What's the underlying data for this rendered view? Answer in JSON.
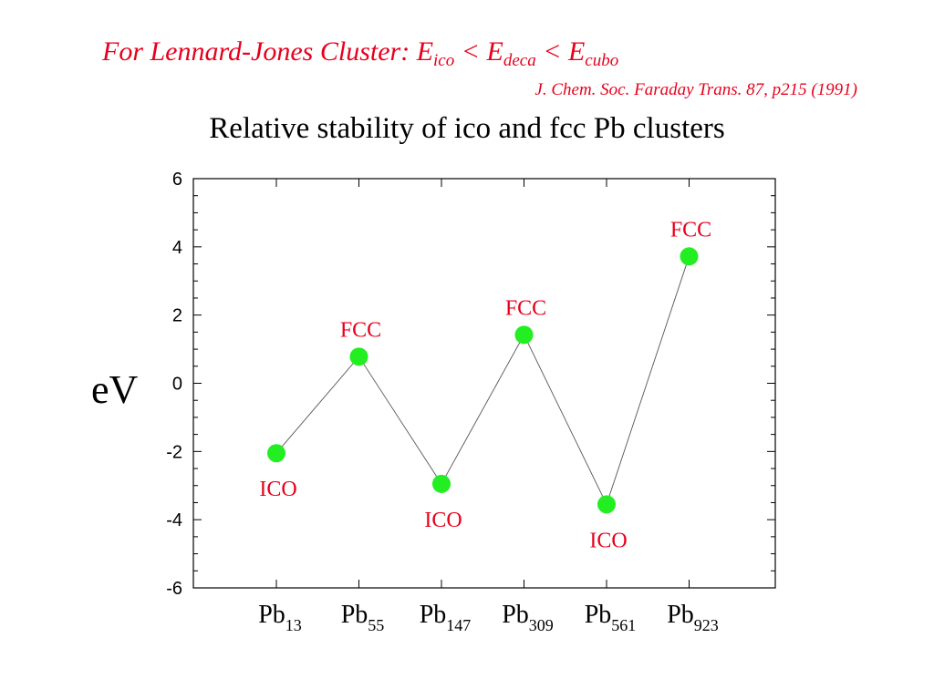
{
  "header": {
    "prefix": "For Lennard-Jones Cluster: ",
    "e1": "E",
    "s1": "ico",
    "lt1": " < ",
    "e2": "E",
    "s2": "deca",
    "lt2": " < ",
    "e3": "E",
    "s3": "cubo",
    "citation": "J. Chem. Soc. Faraday Trans. 87, p215 (1991)"
  },
  "chart_data": {
    "type": "line",
    "title": "Relative stability of ico and fcc Pb clusters",
    "xlabel": "",
    "ylabel": "eV",
    "ylim": [
      -6,
      6
    ],
    "yticks": [
      6,
      4,
      2,
      0,
      -2,
      -4,
      -6
    ],
    "categories": [
      {
        "base": "Pb",
        "sub": "13"
      },
      {
        "base": "Pb",
        "sub": "55"
      },
      {
        "base": "Pb",
        "sub": "147"
      },
      {
        "base": "Pb",
        "sub": "309"
      },
      {
        "base": "Pb",
        "sub": "561"
      },
      {
        "base": "Pb",
        "sub": "923"
      }
    ],
    "values": [
      -2.05,
      0.78,
      -2.95,
      1.42,
      -3.55,
      3.72
    ],
    "point_labels": [
      "ICO",
      "FCC",
      "ICO",
      "FCC",
      "ICO",
      "FCC"
    ],
    "marker_color": "#22ee22",
    "label_color": "#e8001c"
  }
}
